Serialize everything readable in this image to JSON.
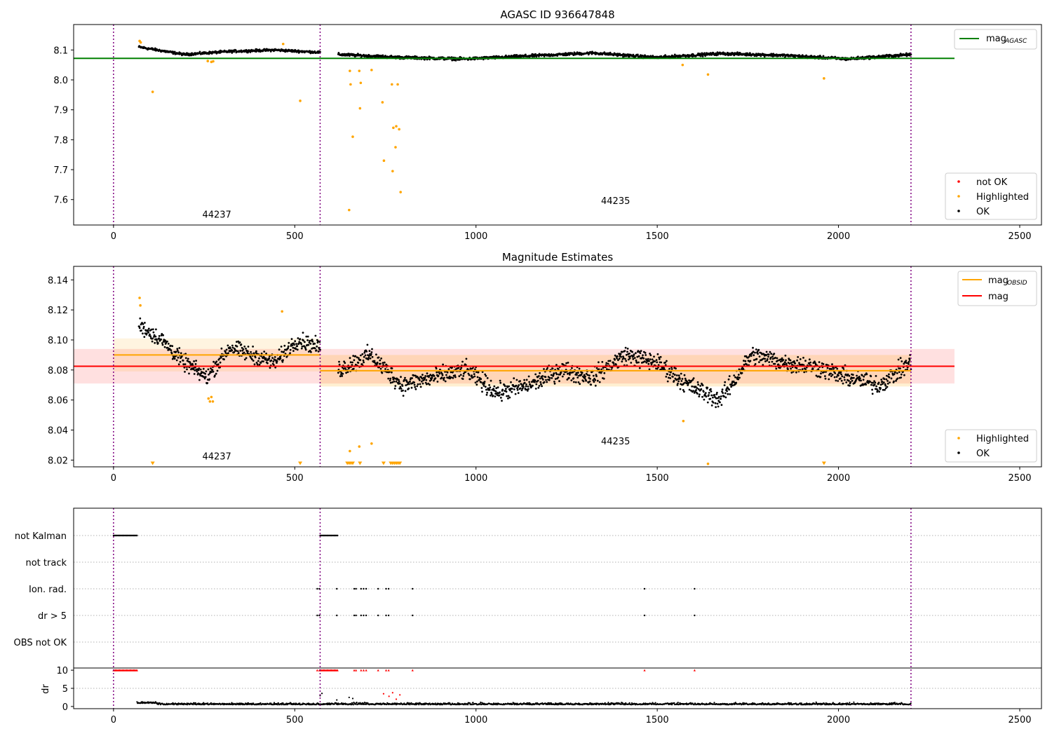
{
  "chart_data": [
    {
      "type": "scatter",
      "title": "AGASC ID 936647848",
      "xlim": [
        -110,
        2560
      ],
      "ylim": [
        7.515,
        8.185
      ],
      "xticks": [
        "0",
        "500",
        "1000",
        "1500",
        "2000",
        "2500"
      ],
      "yticks": [
        "7.6",
        "7.7",
        "7.8",
        "7.9",
        "8.0",
        "8.1"
      ],
      "obs_boundaries": [
        0,
        570,
        2200
      ],
      "obs_labels": [
        {
          "text": "44237",
          "x": 285,
          "y": 7.54
        },
        {
          "text": "44235",
          "x": 1385,
          "y": 7.585
        }
      ],
      "lines": [
        {
          "name": "mag_AGASC",
          "color": "#008000",
          "y": 8.072,
          "x": [
            -110,
            2320
          ]
        }
      ],
      "series": [
        {
          "name": "not OK",
          "color": "#ff0000"
        },
        {
          "name": "Highlighted",
          "color": "#ffa500"
        },
        {
          "name": "OK",
          "color": "#000000"
        }
      ],
      "ok_segments": [
        {
          "x": [
            70,
            570
          ],
          "base": [
            8.11,
            8.085,
            8.095,
            8.1,
            8.092
          ],
          "noise": 0.006
        },
        {
          "x": [
            620,
            2200
          ],
          "base": [
            8.085,
            8.075,
            8.07,
            8.08,
            8.09,
            8.075,
            8.088,
            8.082,
            8.07,
            8.085
          ],
          "noise": 0.007
        }
      ],
      "highlighted_points": [
        [
          72,
          8.13
        ],
        [
          75,
          8.125
        ],
        [
          108,
          7.96
        ],
        [
          260,
          8.063
        ],
        [
          270,
          8.06
        ],
        [
          275,
          8.062
        ],
        [
          468,
          8.12
        ],
        [
          515,
          7.93
        ],
        [
          650,
          7.565
        ],
        [
          652,
          8.03
        ],
        [
          654,
          7.985
        ],
        [
          660,
          7.81
        ],
        [
          678,
          8.03
        ],
        [
          680,
          7.905
        ],
        [
          682,
          7.99
        ],
        [
          712,
          8.033
        ],
        [
          742,
          7.925
        ],
        [
          746,
          7.73
        ],
        [
          768,
          7.985
        ],
        [
          770,
          7.695
        ],
        [
          772,
          7.84
        ],
        [
          778,
          7.775
        ],
        [
          780,
          7.845
        ],
        [
          784,
          7.985
        ],
        [
          788,
          7.835
        ],
        [
          792,
          7.625
        ],
        [
          1570,
          8.05
        ],
        [
          1640,
          8.018
        ],
        [
          1960,
          8.005
        ]
      ],
      "legend_line": {
        "label": "mag",
        "sub": "AGASC"
      },
      "legend_points": [
        "not OK",
        "Highlighted",
        "OK"
      ]
    },
    {
      "type": "scatter",
      "title": "Magnitude Estimates",
      "xlim": [
        -110,
        2560
      ],
      "ylim": [
        8.0155,
        8.149
      ],
      "xticks": [
        "0",
        "500",
        "1000",
        "1500",
        "2000",
        "2500"
      ],
      "yticks": [
        "8.02",
        "8.04",
        "8.06",
        "8.08",
        "8.10",
        "8.12",
        "8.14"
      ],
      "obs_boundaries": [
        0,
        570,
        2200
      ],
      "obs_labels": [
        {
          "text": "44237",
          "x": 285,
          "y": 8.0205
        },
        {
          "text": "44235",
          "x": 1385,
          "y": 8.0305
        }
      ],
      "bands": [
        {
          "name": "mag",
          "color": "#ff0000",
          "opacity": 0.12,
          "x": [
            -110,
            2320
          ],
          "y": [
            8.071,
            8.094
          ]
        },
        {
          "name": "mag_OBSID 44237",
          "color": "#ffa500",
          "opacity": 0.12,
          "x": [
            0,
            570
          ],
          "y": [
            8.079,
            8.101
          ]
        },
        {
          "name": "mag_OBSID 44235",
          "color": "#ffa500",
          "opacity": 0.18,
          "x": [
            570,
            2200
          ],
          "y": [
            8.069,
            8.09
          ]
        }
      ],
      "lines": [
        {
          "name": "mag_OBSID 44237",
          "color": "#ffa500",
          "y": 8.09,
          "x": [
            0,
            570
          ]
        },
        {
          "name": "mag_OBSID 44235",
          "color": "#ffa500",
          "y": 8.0795,
          "x": [
            570,
            2200
          ]
        },
        {
          "name": "mag",
          "color": "#ff0000",
          "y": 8.0825,
          "x": [
            -110,
            2320
          ]
        }
      ],
      "series": [
        {
          "name": "Highlighted",
          "color": "#ffa500"
        },
        {
          "name": "OK",
          "color": "#000000"
        }
      ],
      "ok_segments": [
        {
          "x": [
            70,
            570
          ],
          "base": [
            8.11,
            8.1,
            8.085,
            8.075,
            8.095,
            8.09,
            8.085,
            8.1,
            8.095
          ],
          "noise": 0.008
        },
        {
          "x": [
            620,
            2200
          ],
          "base": [
            8.08,
            8.09,
            8.07,
            8.075,
            8.08,
            8.065,
            8.07,
            8.08,
            8.075,
            8.09,
            8.085,
            8.07,
            8.06,
            8.09,
            8.085,
            8.082,
            8.075,
            8.07,
            8.085
          ],
          "noise": 0.009
        }
      ],
      "highlighted_points": [
        [
          72,
          8.128
        ],
        [
          74,
          8.123
        ],
        [
          262,
          8.061
        ],
        [
          266,
          8.059
        ],
        [
          270,
          8.062
        ],
        [
          274,
          8.059
        ],
        [
          465,
          8.119
        ],
        [
          652,
          8.026
        ],
        [
          678,
          8.029
        ],
        [
          712,
          8.031
        ],
        [
          1572,
          8.046
        ],
        [
          1640,
          8.0175
        ]
      ],
      "below_markers": [
        108,
        515,
        645,
        650,
        655,
        660,
        680,
        745,
        765,
        770,
        775,
        780,
        785,
        790,
        1960
      ],
      "legend_line": [
        {
          "label": "mag",
          "sub": "OBSID",
          "color": "#ffa500"
        },
        {
          "label": "mag",
          "sub": "",
          "color": "#ff0000"
        }
      ],
      "legend_points": [
        "Highlighted",
        "OK"
      ]
    },
    {
      "type": "scatter",
      "title": "",
      "xlim": [
        -110,
        2560
      ],
      "xticks": [
        "0",
        "500",
        "1000",
        "1500",
        "2000",
        "2500"
      ],
      "obs_boundaries": [
        0,
        570,
        2200
      ],
      "flag_rows": [
        "not Kalman",
        "not track",
        "Ion. rad.",
        "dr > 5",
        "OBS not OK"
      ],
      "flags": {
        "not Kalman": {
          "ranges": [
            [
              0,
              65
            ],
            [
              570,
              618
            ]
          ],
          "points": []
        },
        "not track": {
          "ranges": [],
          "points": []
        },
        "Ion. rad.": {
          "ranges": [],
          "points": [
            562,
            568,
            616,
            664,
            669,
            683,
            690,
            697,
            730,
            752,
            759,
            825,
            1465,
            1603
          ]
        },
        "dr > 5": {
          "ranges": [],
          "points": [
            562,
            568,
            616,
            664,
            669,
            683,
            690,
            697,
            730,
            752,
            759,
            825,
            1465,
            1603
          ]
        },
        "OBS not OK": {
          "ranges": [],
          "points": []
        }
      },
      "dr": {
        "ylabel": "dr",
        "yticks": [
          "0",
          "5",
          "10"
        ],
        "ylim": [
          -0.6,
          10.6
        ],
        "clip_value": 10,
        "clipped_ranges": [
          [
            0,
            65
          ],
          [
            570,
            618
          ]
        ],
        "clipped_points": [
          562,
          568,
          664,
          669,
          683,
          690,
          697,
          730,
          752,
          759,
          825,
          1465,
          1603
        ],
        "mid_points": [
          [
            570,
            3.0
          ],
          [
            575,
            3.6
          ],
          [
            616,
            1.8
          ],
          [
            650,
            2.5
          ],
          [
            660,
            2.2
          ],
          [
            745,
            3.5
          ],
          [
            760,
            2.8
          ],
          [
            770,
            3.8
          ],
          [
            780,
            2.0
          ],
          [
            790,
            3.2
          ]
        ],
        "baseline_x": [
          65,
          2200
        ],
        "baseline_level": 0.6
      }
    }
  ]
}
